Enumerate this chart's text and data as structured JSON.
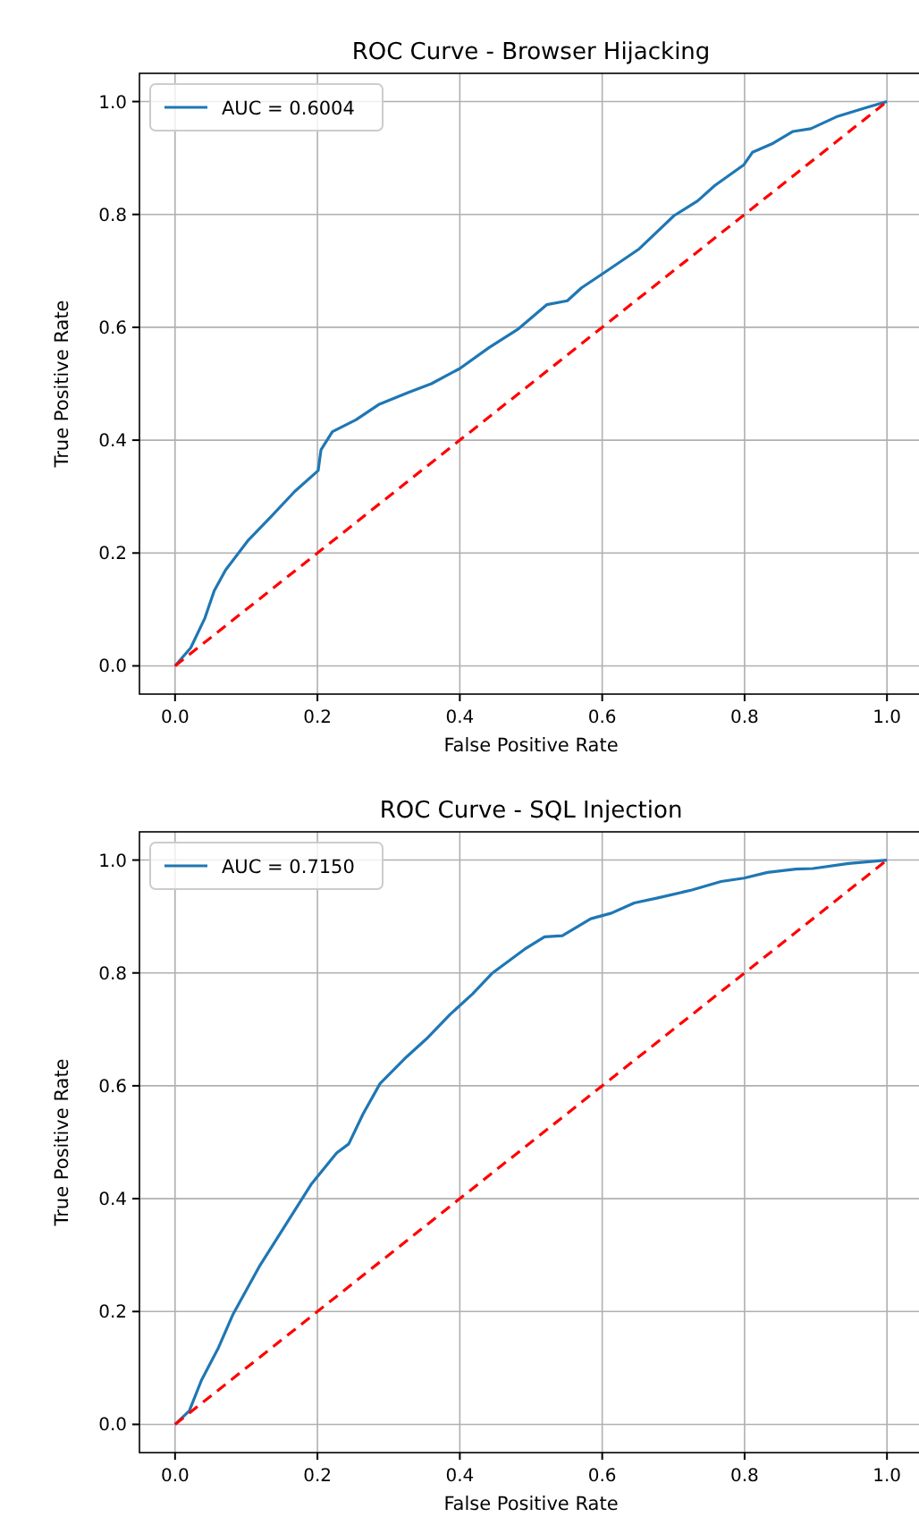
{
  "chart_data": [
    {
      "type": "line",
      "title": "ROC Curve - Browser Hijacking",
      "xlabel": "False Positive Rate",
      "ylabel": "True Positive Rate",
      "xlim": [
        -0.05,
        1.05
      ],
      "ylim": [
        -0.05,
        1.05
      ],
      "xticks": [
        {
          "value": 0,
          "label": "0.0"
        },
        {
          "value": 0.2,
          "label": "0.2"
        },
        {
          "value": 0.4,
          "label": "0.4"
        },
        {
          "value": 0.6,
          "label": "0.6"
        },
        {
          "value": 0.8,
          "label": "0.8"
        },
        {
          "value": 1,
          "label": "1.0"
        }
      ],
      "yticks": [
        {
          "value": 0,
          "label": "0.0"
        },
        {
          "value": 0.2,
          "label": "0.2"
        },
        {
          "value": 0.4,
          "label": "0.4"
        },
        {
          "value": 0.6,
          "label": "0.6"
        },
        {
          "value": 0.8,
          "label": "0.8"
        },
        {
          "value": 1,
          "label": "1.0"
        }
      ],
      "grid": true,
      "legend": "top left",
      "series": [
        {
          "name": "AUC = 0.6004",
          "color": "#1f77b4",
          "line_style": "solid",
          "x": [
            0,
            0.022,
            0.042,
            0.055,
            0.071,
            0.103,
            0.136,
            0.168,
            0.201,
            0.205,
            0.221,
            0.254,
            0.286,
            0.327,
            0.36,
            0.4,
            0.441,
            0.481,
            0.522,
            0.551,
            0.571,
            0.603,
            0.652,
            0.701,
            0.734,
            0.758,
            0.799,
            0.811,
            0.84,
            0.868,
            0.893,
            0.929,
            0.97,
            1
          ],
          "values": [
            0,
            0.032,
            0.085,
            0.133,
            0.17,
            0.223,
            0.266,
            0.309,
            0.346,
            0.383,
            0.415,
            0.436,
            0.463,
            0.484,
            0.5,
            0.527,
            0.564,
            0.596,
            0.64,
            0.647,
            0.67,
            0.697,
            0.739,
            0.798,
            0.824,
            0.851,
            0.888,
            0.91,
            0.926,
            0.947,
            0.952,
            0.973,
            0.989,
            1
          ]
        },
        {
          "color": "#ff0000",
          "line_style": "dashed",
          "x": [
            0,
            1
          ],
          "values": [
            0,
            1
          ]
        }
      ]
    },
    {
      "type": "line",
      "title": "ROC Curve - SQL Injection",
      "xlabel": "False Positive Rate",
      "ylabel": "True Positive Rate",
      "xlim": [
        -0.05,
        1.05
      ],
      "ylim": [
        -0.05,
        1.05
      ],
      "xticks": [
        {
          "value": 0,
          "label": "0.0"
        },
        {
          "value": 0.2,
          "label": "0.2"
        },
        {
          "value": 0.4,
          "label": "0.4"
        },
        {
          "value": 0.6,
          "label": "0.6"
        },
        {
          "value": 0.8,
          "label": "0.8"
        },
        {
          "value": 1,
          "label": "1.0"
        }
      ],
      "yticks": [
        {
          "value": 0,
          "label": "0.0"
        },
        {
          "value": 0.2,
          "label": "0.2"
        },
        {
          "value": 0.4,
          "label": "0.4"
        },
        {
          "value": 0.6,
          "label": "0.6"
        },
        {
          "value": 0.8,
          "label": "0.8"
        },
        {
          "value": 1,
          "label": "1.0"
        }
      ],
      "grid": true,
      "legend": "top left",
      "series": [
        {
          "name": "AUC = 0.7150",
          "color": "#1f77b4",
          "line_style": "solid",
          "x": [
            0,
            0.02,
            0.037,
            0.061,
            0.081,
            0.118,
            0.142,
            0.166,
            0.191,
            0.227,
            0.244,
            0.264,
            0.288,
            0.325,
            0.353,
            0.386,
            0.418,
            0.446,
            0.491,
            0.519,
            0.544,
            0.584,
            0.613,
            0.645,
            0.678,
            0.726,
            0.767,
            0.799,
            0.832,
            0.872,
            0.896,
            0.946,
            1
          ],
          "values": [
            0,
            0.024,
            0.078,
            0.136,
            0.194,
            0.279,
            0.327,
            0.375,
            0.425,
            0.481,
            0.497,
            0.55,
            0.604,
            0.651,
            0.683,
            0.726,
            0.763,
            0.8,
            0.842,
            0.864,
            0.866,
            0.896,
            0.906,
            0.924,
            0.933,
            0.947,
            0.962,
            0.968,
            0.978,
            0.984,
            0.985,
            0.994,
            1
          ]
        },
        {
          "color": "#ff0000",
          "line_style": "dashed",
          "x": [
            0,
            1
          ],
          "values": [
            0,
            1
          ]
        }
      ]
    }
  ]
}
